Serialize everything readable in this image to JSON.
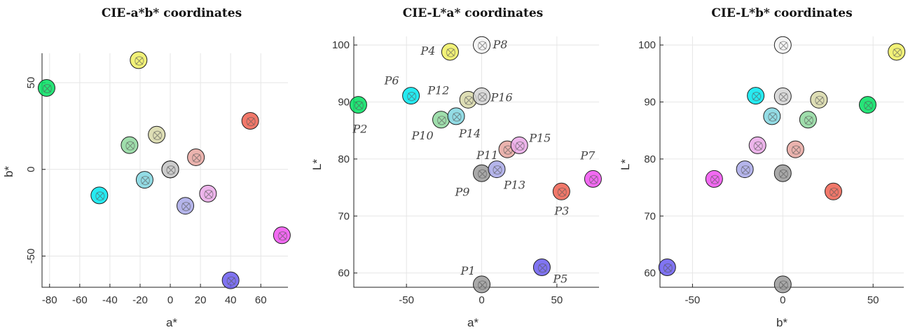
{
  "chart_data": [
    {
      "type": "scatter",
      "title": "CIE-a*b* coordinates",
      "xlabel": "a*",
      "ylabel": "b*",
      "xlim": [
        -85,
        78
      ],
      "ylim": [
        -68,
        67
      ],
      "xticks": [
        -80,
        -60,
        -40,
        -20,
        0,
        20,
        40,
        60
      ],
      "yticks": [
        -50,
        0,
        50
      ],
      "grid": true,
      "points": [
        {
          "id": "P1",
          "x": 0,
          "y": 0,
          "color": "#222222"
        },
        {
          "id": "P2",
          "x": -82,
          "y": 47,
          "color": "#00e060"
        },
        {
          "id": "P3",
          "x": 53,
          "y": 28,
          "color": "#f06050"
        },
        {
          "id": "P4",
          "x": -21,
          "y": 63,
          "color": "#f0f060"
        },
        {
          "id": "P5",
          "x": 40,
          "y": -64,
          "color": "#6a5cf0"
        },
        {
          "id": "P6",
          "x": -47,
          "y": -15,
          "color": "#00e8f0"
        },
        {
          "id": "P7",
          "x": 74,
          "y": -38,
          "color": "#f050f0"
        },
        {
          "id": "P8",
          "x": 0,
          "y": 0,
          "color": "#f4f4f4"
        },
        {
          "id": "P9",
          "x": 0,
          "y": 0,
          "color": "#9a9a9a"
        },
        {
          "id": "P10",
          "x": -27,
          "y": 14,
          "color": "#8ed89e"
        },
        {
          "id": "P11",
          "x": 17,
          "y": 7,
          "color": "#e8a6a0"
        },
        {
          "id": "P12",
          "x": -9,
          "y": 20,
          "color": "#d8d8a8"
        },
        {
          "id": "P13",
          "x": 10,
          "y": -21,
          "color": "#a8a8e8"
        },
        {
          "id": "P14",
          "x": -17,
          "y": -6,
          "color": "#80d6e0"
        },
        {
          "id": "P15",
          "x": 25,
          "y": -14,
          "color": "#eaa8e8"
        },
        {
          "id": "P16",
          "x": 0,
          "y": 0,
          "color": "#d4d4d4"
        }
      ]
    },
    {
      "type": "scatter",
      "title": "CIE-L*a* coordinates",
      "xlabel": "a*",
      "ylabel": "L*",
      "xlim": [
        -85,
        78
      ],
      "ylim": [
        57.5,
        101.5
      ],
      "xticks": [
        -50,
        0,
        50
      ],
      "yticks": [
        60,
        70,
        80,
        90,
        100
      ],
      "grid": true,
      "points": [
        {
          "id": "P1",
          "label": "P1",
          "x": 0,
          "y": 58,
          "color": "#9a9a9a"
        },
        {
          "id": "P2",
          "label": "P2",
          "x": -82,
          "y": 89.5,
          "color": "#00e060"
        },
        {
          "id": "P3",
          "label": "P3",
          "x": 53,
          "y": 74.3,
          "color": "#f06050"
        },
        {
          "id": "P4",
          "label": "P4",
          "x": -21,
          "y": 98.8,
          "color": "#f0f060"
        },
        {
          "id": "P5",
          "label": "P5",
          "x": 40,
          "y": 61,
          "color": "#6a5cf0"
        },
        {
          "id": "P6",
          "label": "P6",
          "x": -47,
          "y": 91.1,
          "color": "#00e8f0"
        },
        {
          "id": "P7",
          "label": "P7",
          "x": 74,
          "y": 76.5,
          "color": "#f050f0"
        },
        {
          "id": "P8",
          "label": "P8",
          "x": 0,
          "y": 100,
          "color": "#f4f4f4"
        },
        {
          "id": "P9",
          "label": "P9",
          "x": 0,
          "y": 77.5,
          "color": "#9a9a9a"
        },
        {
          "id": "P10",
          "label": "P10",
          "x": -27,
          "y": 86.9,
          "color": "#8ed89e"
        },
        {
          "id": "P11",
          "label": "P11",
          "x": 17,
          "y": 81.7,
          "color": "#e8a6a0"
        },
        {
          "id": "P12",
          "label": "P12",
          "x": -9,
          "y": 90.4,
          "color": "#d8d8a8"
        },
        {
          "id": "P13",
          "label": "P13",
          "x": 10,
          "y": 78.2,
          "color": "#a8a8e8"
        },
        {
          "id": "P14",
          "label": "P14",
          "x": -17,
          "y": 87.5,
          "color": "#80d6e0"
        },
        {
          "id": "P15",
          "label": "P15",
          "x": 25,
          "y": 82.4,
          "color": "#eaa8e8"
        },
        {
          "id": "P16",
          "label": "P16",
          "x": 0,
          "y": 91,
          "color": "#d4d4d4"
        }
      ]
    },
    {
      "type": "scatter",
      "title": "CIE-L*b* coordinates",
      "xlabel": "b*",
      "ylabel": "L*",
      "xlim": [
        -68,
        67
      ],
      "ylim": [
        57.5,
        101.5
      ],
      "xticks": [
        -50,
        0,
        50
      ],
      "yticks": [
        60,
        70,
        80,
        90,
        100
      ],
      "grid": true,
      "points": [
        {
          "id": "P1",
          "x": 0,
          "y": 58,
          "color": "#9a9a9a"
        },
        {
          "id": "P2",
          "x": 47,
          "y": 89.5,
          "color": "#00e060"
        },
        {
          "id": "P3",
          "x": 28,
          "y": 74.3,
          "color": "#f06050"
        },
        {
          "id": "P4",
          "x": 63,
          "y": 98.8,
          "color": "#f0f060"
        },
        {
          "id": "P5",
          "x": -64,
          "y": 61,
          "color": "#6a5cf0"
        },
        {
          "id": "P6",
          "x": -15,
          "y": 91.1,
          "color": "#00e8f0"
        },
        {
          "id": "P7",
          "x": -38,
          "y": 76.5,
          "color": "#f050f0"
        },
        {
          "id": "P8",
          "x": 0,
          "y": 100,
          "color": "#f4f4f4"
        },
        {
          "id": "P9",
          "x": 0,
          "y": 77.5,
          "color": "#9a9a9a"
        },
        {
          "id": "P10",
          "x": 14,
          "y": 86.9,
          "color": "#8ed89e"
        },
        {
          "id": "P11",
          "x": 7,
          "y": 81.7,
          "color": "#e8a6a0"
        },
        {
          "id": "P12",
          "x": 20,
          "y": 90.4,
          "color": "#d8d8a8"
        },
        {
          "id": "P13",
          "x": -21,
          "y": 78.2,
          "color": "#a8a8e8"
        },
        {
          "id": "P14",
          "x": -6,
          "y": 87.5,
          "color": "#80d6e0"
        },
        {
          "id": "P15",
          "x": -14,
          "y": 82.4,
          "color": "#eaa8e8"
        },
        {
          "id": "P16",
          "x": 0,
          "y": 91,
          "color": "#d4d4d4"
        }
      ]
    }
  ]
}
